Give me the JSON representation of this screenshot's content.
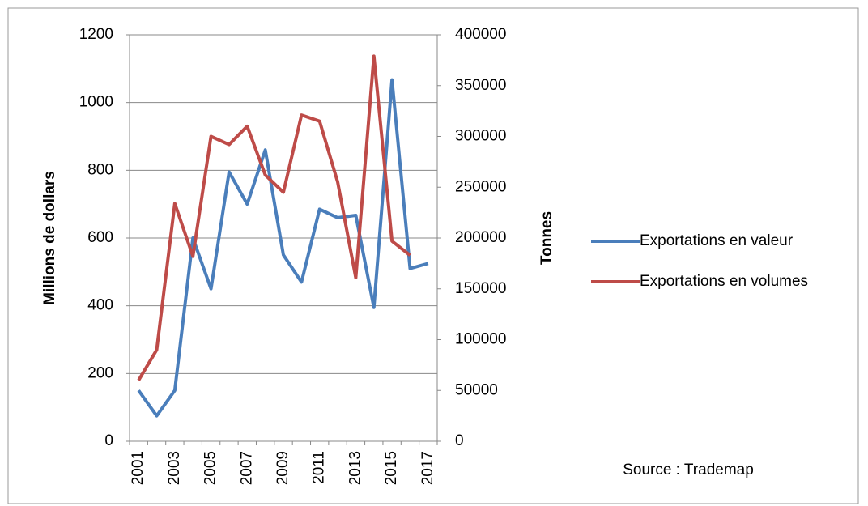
{
  "chart_data": {
    "type": "line",
    "categories": [
      "2001",
      null,
      "2003",
      null,
      "2005",
      null,
      "2007",
      null,
      "2009",
      null,
      "2011",
      null,
      "2013",
      null,
      "2015",
      null,
      "2017"
    ],
    "series": [
      {
        "name": "Exportations en valeur",
        "color": "#4a7ebb",
        "values": [
          150,
          75,
          150,
          600,
          450,
          795,
          700,
          860,
          550,
          470,
          685,
          660,
          667,
          395,
          1067,
          510,
          525
        ]
      },
      {
        "name": "Exportations en volumes",
        "color": "#be4b48",
        "axis": "y2",
        "values": [
          60000,
          90000,
          234000,
          182000,
          300000,
          292000,
          310000,
          262000,
          245000,
          321000,
          315000,
          255000,
          161000,
          379000,
          197000,
          183000,
          null
        ]
      }
    ],
    "ylabel": "Millions de dollars",
    "y2label": "Tonnes",
    "ylim": [
      0,
      1200
    ],
    "yticks": [
      0,
      200,
      400,
      600,
      800,
      1000,
      1200
    ],
    "y2lim": [
      0,
      400000
    ],
    "y2ticks": [
      0,
      50000,
      100000,
      150000,
      200000,
      250000,
      300000,
      350000,
      400000
    ],
    "grid": true,
    "legend": "right",
    "source": "Source : Trademap"
  }
}
